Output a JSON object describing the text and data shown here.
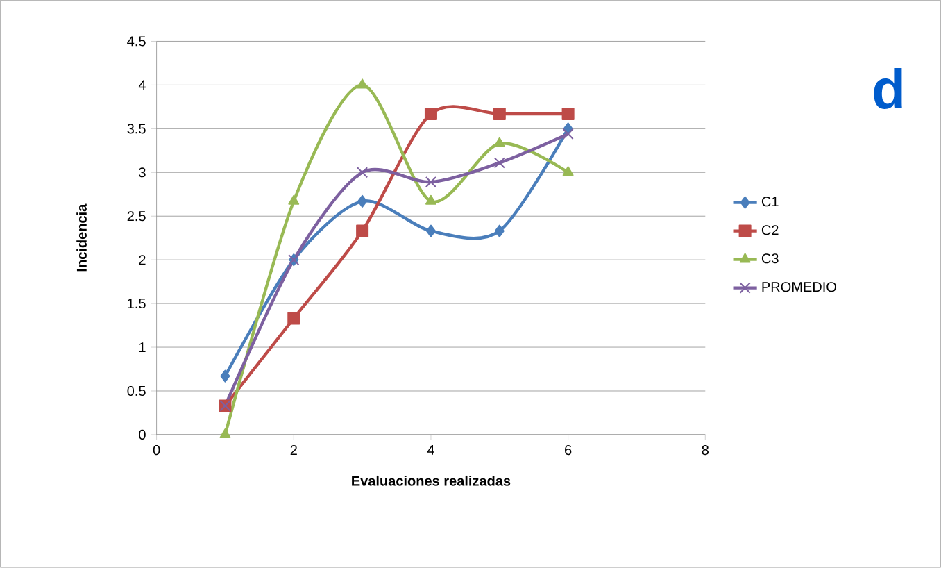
{
  "chart_data": {
    "type": "line",
    "xlabel": "Evaluaciones  realizadas",
    "ylabel": "Incidencia",
    "x": [
      1,
      2,
      3,
      4,
      5,
      6
    ],
    "series": [
      {
        "name": "C1",
        "color": "#4a7ebb",
        "marker": "diamond",
        "values": [
          0.67,
          2,
          2.67,
          2.33,
          2.33,
          3.5
        ]
      },
      {
        "name": "C2",
        "color": "#be4b48",
        "marker": "square",
        "values": [
          0.33,
          1.33,
          2.33,
          3.67,
          3.67,
          3.67
        ]
      },
      {
        "name": "C3",
        "color": "#98b954",
        "marker": "triangle",
        "values": [
          0,
          2.67,
          4,
          2.67,
          3.33,
          3
        ]
      },
      {
        "name": "PROMEDIO",
        "color": "#7d60a0",
        "marker": "cross",
        "values": [
          0.33,
          2,
          3,
          2.89,
          3.11,
          3.44
        ]
      }
    ],
    "xlim": [
      0,
      8
    ],
    "xticks": [
      0,
      2,
      4,
      6,
      8
    ],
    "ylim": [
      0,
      4.5
    ],
    "yticks": [
      0,
      0.5,
      1,
      1.5,
      2,
      2.5,
      3,
      3.5,
      4,
      4.5
    ],
    "grid": "y",
    "legend": "right",
    "annotations": [
      "d"
    ]
  }
}
